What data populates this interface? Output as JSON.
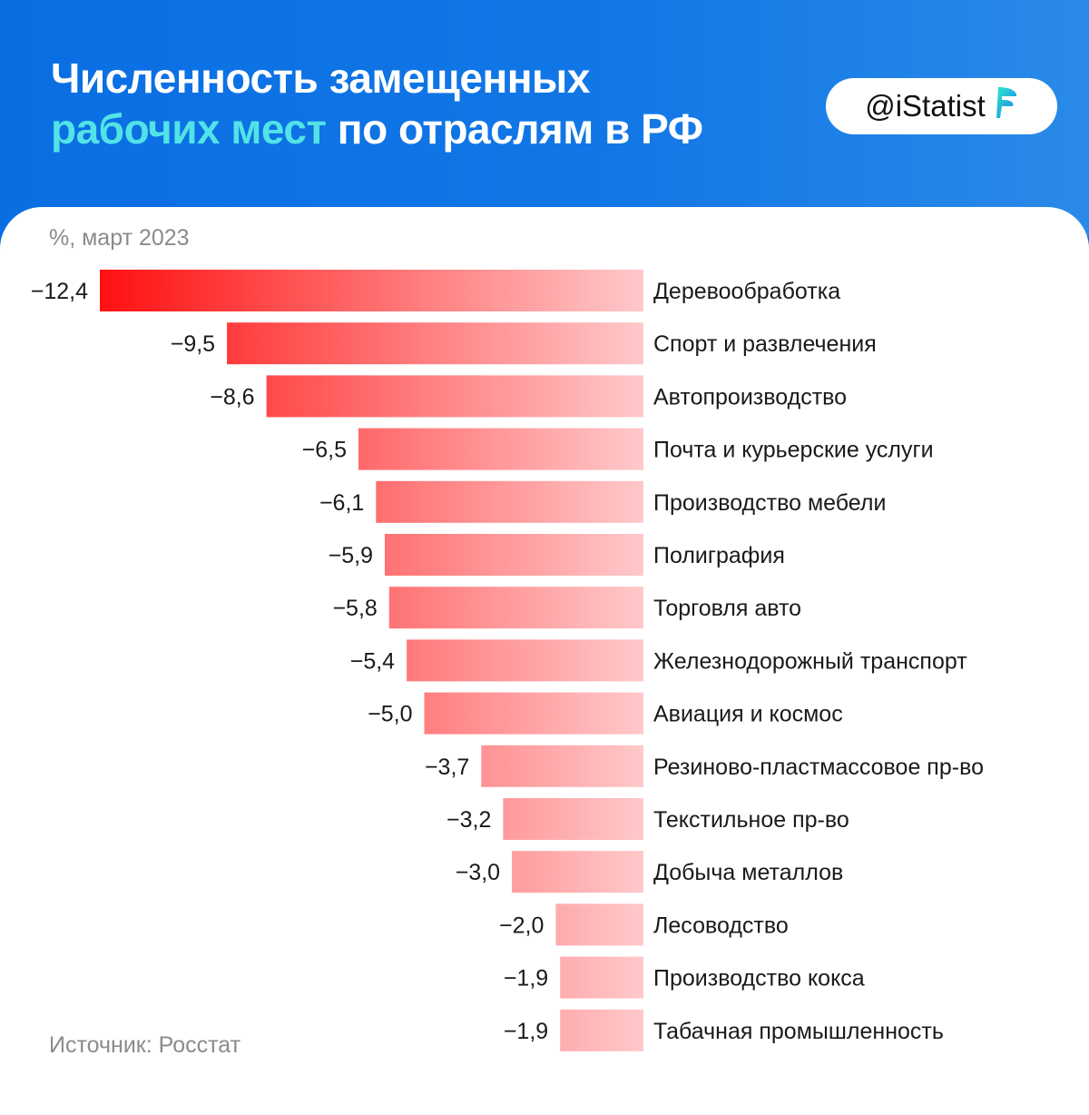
{
  "header": {
    "title_line1": "Численность замещенных",
    "title_line2_accent": "рабочих мест",
    "title_line2_rest": " по отраслям в РФ",
    "badge": "@iStatist"
  },
  "colors": {
    "header_blue": "#0a6ee3",
    "accent_cyan": "#52e3e6",
    "bar_strong": "#ff1010",
    "bar_light": "#ffc9cb"
  },
  "footer": {
    "source": "Источник: Росстат"
  },
  "chart_data": {
    "type": "bar",
    "orientation": "horizontal",
    "subtitle": "%, март 2023",
    "categories": [
      "Деревообработка",
      "Спорт и развлечения",
      "Автопроизводство",
      "Почта и курьерские услуги",
      "Производство мебели",
      "Полиграфия",
      "Торговля авто",
      "Железнодорожный транспорт",
      "Авиация и космос",
      "Резиново-пластмассовое пр-во",
      "Текстильное пр-во",
      "Добыча металлов",
      "Лесоводство",
      "Производство кокса",
      "Табачная промышленность"
    ],
    "values": [
      -12.4,
      -9.5,
      -8.6,
      -6.5,
      -6.1,
      -5.9,
      -5.8,
      -5.4,
      -5.0,
      -3.7,
      -3.2,
      -3.0,
      -2.0,
      -1.9,
      -1.9
    ],
    "value_labels": [
      "−12,4",
      "−9,5",
      "−8,6",
      "−6,5",
      "−6,1",
      "−5,9",
      "−5,8",
      "−5,4",
      "−5,0",
      "−3,7",
      "−3,2",
      "−3,0",
      "−2,0",
      "−1,9",
      "−1,9"
    ],
    "xlim": [
      -12.4,
      0
    ],
    "grid": false,
    "legend": false
  }
}
